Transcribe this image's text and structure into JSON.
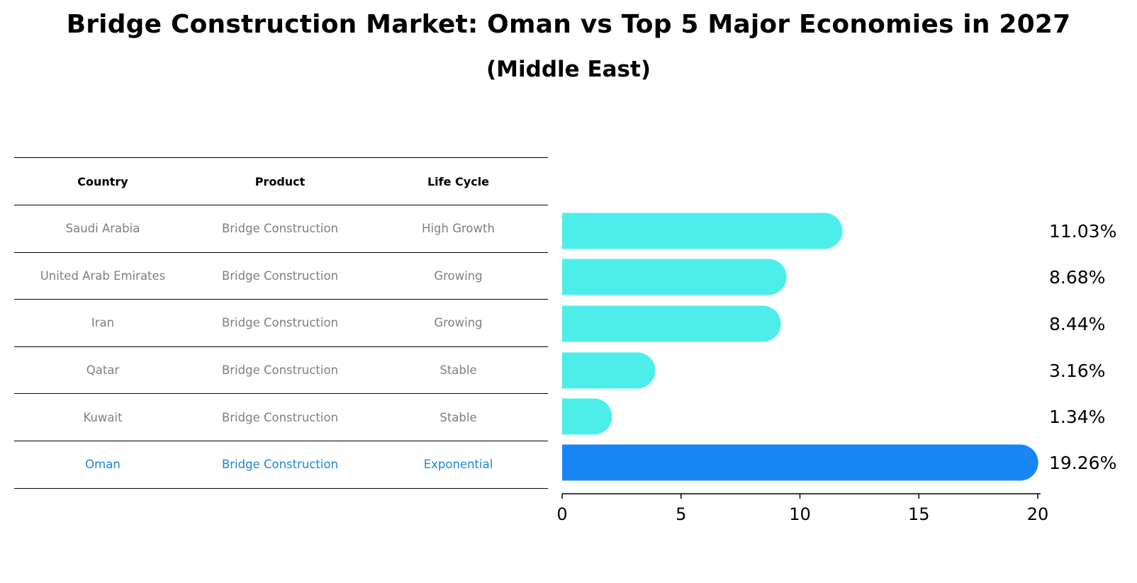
{
  "title": "Bridge Construction Market: Oman vs Top 5 Major Economies in 2027",
  "subtitle": "(Middle East)",
  "table": {
    "headers": [
      "Country",
      "Product",
      "Life Cycle"
    ],
    "rows": [
      [
        "Saudi Arabia",
        "Bridge Construction",
        "High Growth"
      ],
      [
        "United Arab Emirates",
        "Bridge Construction",
        "Growing"
      ],
      [
        "Iran",
        "Bridge Construction",
        "Growing"
      ],
      [
        "Qatar",
        "Bridge Construction",
        "Stable"
      ],
      [
        "Kuwait",
        "Bridge Construction",
        "Stable"
      ],
      [
        "Oman",
        "Bridge Construction",
        "Exponential"
      ]
    ],
    "highlight_row": 5
  },
  "colors": {
    "bar": "#4deee9",
    "highlight_bar": "#1a86f5",
    "highlight_text": "#1a86d9",
    "body_text": "#7f7f7f"
  },
  "chart_data": {
    "type": "bar",
    "orientation": "horizontal",
    "categories": [
      "Saudi Arabia",
      "United Arab Emirates",
      "Iran",
      "Qatar",
      "Kuwait",
      "Oman"
    ],
    "values": [
      11.03,
      8.68,
      8.44,
      3.16,
      1.34,
      19.26
    ],
    "value_labels": [
      "11.03%",
      "8.68%",
      "8.44%",
      "3.16%",
      "1.34%",
      "19.26%"
    ],
    "xlim": [
      0,
      20
    ],
    "xticks": [
      0,
      5,
      10,
      15,
      20
    ],
    "grid": false,
    "legend": "none"
  }
}
